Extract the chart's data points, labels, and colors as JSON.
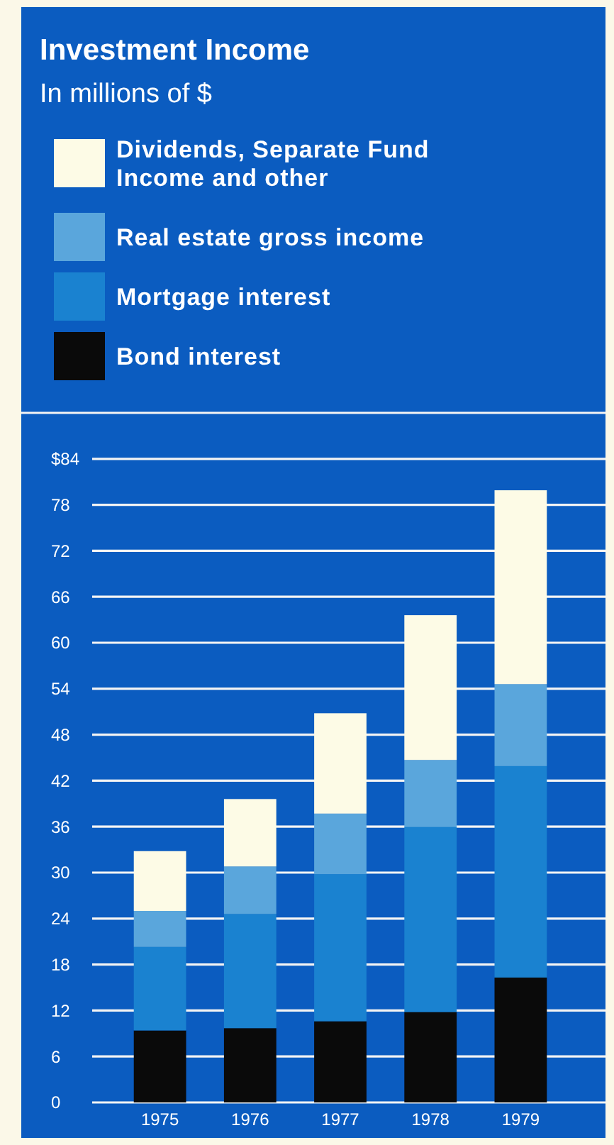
{
  "chart_data": {
    "type": "bar",
    "title": "Investment Income",
    "subtitle": "In millions of $",
    "stacked": true,
    "legend": "top",
    "grid": "y",
    "categories": [
      "1975",
      "1976",
      "1977",
      "1978",
      "1979"
    ],
    "series": [
      {
        "name": "Bond interest",
        "color": "#0a0a0a",
        "values": [
          9.4,
          9.7,
          10.6,
          11.8,
          16.3
        ]
      },
      {
        "name": "Mortgage interest",
        "color": "#1a82d0",
        "values": [
          10.9,
          14.9,
          19.2,
          24.2,
          27.6
        ]
      },
      {
        "name": "Real estate gross income",
        "color": "#5aa6dc",
        "values": [
          4.7,
          6.2,
          7.9,
          8.7,
          10.7
        ]
      },
      {
        "name": "Dividends, Separate Fund Income and other",
        "color": "#fdfbe6",
        "values": [
          7.8,
          8.8,
          13.1,
          18.9,
          25.3
        ]
      }
    ],
    "ylim": [
      0,
      90
    ],
    "yticks": [
      0,
      6,
      12,
      18,
      24,
      30,
      36,
      42,
      48,
      54,
      60,
      66,
      72,
      78,
      {
        "value": 84,
        "label": "$84"
      },
      {
        "value": 90,
        "label": null
      }
    ]
  }
}
